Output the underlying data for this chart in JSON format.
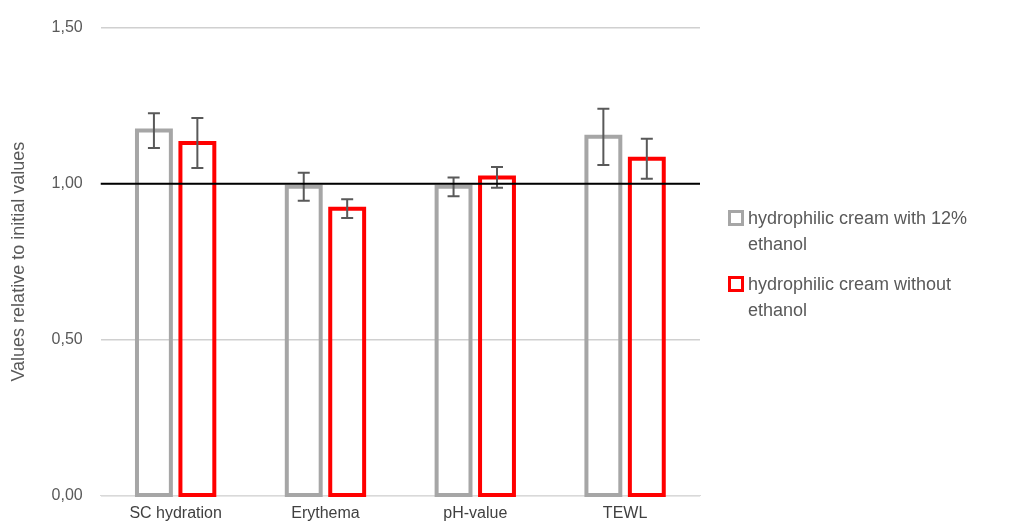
{
  "chart_data": {
    "type": "bar",
    "ylabel": "Values relative to initial values",
    "categories": [
      "SC hydration",
      "Erythema",
      "pH-value",
      "TEWL"
    ],
    "series": [
      {
        "name": "hydrophilic cream with 12% ethanol",
        "color": "#a6a6a6",
        "values": [
          1.17,
          0.99,
          0.99,
          1.15
        ],
        "errors": [
          0.056,
          0.045,
          0.03,
          0.09
        ]
      },
      {
        "name": "hydrophilic cream without ethanol",
        "color": "#ff0000",
        "values": [
          1.13,
          0.92,
          1.02,
          1.08
        ],
        "errors": [
          0.08,
          0.03,
          0.033,
          0.064
        ]
      }
    ],
    "ylim": [
      0,
      1.5
    ],
    "yticks": [
      {
        "value": 0,
        "label": "0,00"
      },
      {
        "value": 0.5,
        "label": "0,50"
      },
      {
        "value": 1,
        "label": "1,00"
      },
      {
        "value": 1.5,
        "label": "1,50"
      }
    ],
    "ref_lines": [
      {
        "axis": "y",
        "value": 1,
        "color": "#000000"
      }
    ],
    "grid": "y",
    "legend": "right"
  }
}
